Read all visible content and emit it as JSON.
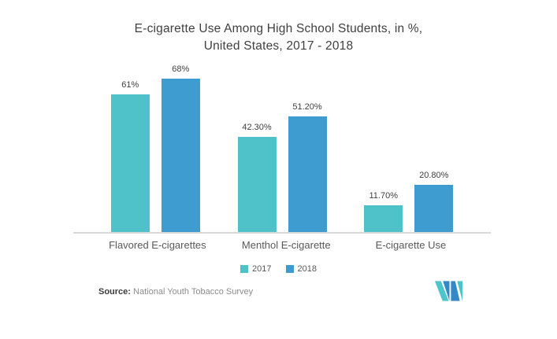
{
  "title": {
    "line1": "E-cigarette Use Among High School Students, in %,",
    "line2": "United States, 2017 - 2018"
  },
  "chart_data": {
    "type": "bar",
    "title": "E-cigarette Use Among High School Students, in %, United States, 2017 - 2018",
    "categories": [
      "Flavored E-cigarettes",
      "Menthol E-cigarette",
      "E-cigarette Use"
    ],
    "series": [
      {
        "name": "2017",
        "color": "#4FC2C9",
        "values": [
          61,
          42.3,
          11.7
        ],
        "labels": [
          "61%",
          "42.30%",
          "11.70%"
        ]
      },
      {
        "name": "2018",
        "color": "#3E9CD1",
        "values": [
          68,
          51.2,
          20.8
        ],
        "labels": [
          "68%",
          "51.20%",
          "20.80%"
        ]
      }
    ],
    "xlabel": "",
    "ylabel": "",
    "ylim": [
      0,
      75
    ],
    "grid": false,
    "y_axis_visible": false,
    "legend_position": "bottom",
    "data_labels": "above bars"
  },
  "legend": {
    "items": [
      {
        "label": "2017",
        "color": "#4FC2C9"
      },
      {
        "label": "2018",
        "color": "#3E9CD1"
      }
    ]
  },
  "footer": {
    "source_label": "Source:",
    "source_text": " National Youth Tobacco Survey",
    "logo_icon": "mordor-intelligence-logo"
  },
  "colors": {
    "series_2017": "#4FC2C9",
    "series_2018": "#3E9CD1",
    "axis_line": "#D9D9D9",
    "title_text": "#404040",
    "category_text": "#595959",
    "logo_teal": "#4DC5CB",
    "logo_blue": "#3389C7",
    "background": "#FFFFFF"
  }
}
